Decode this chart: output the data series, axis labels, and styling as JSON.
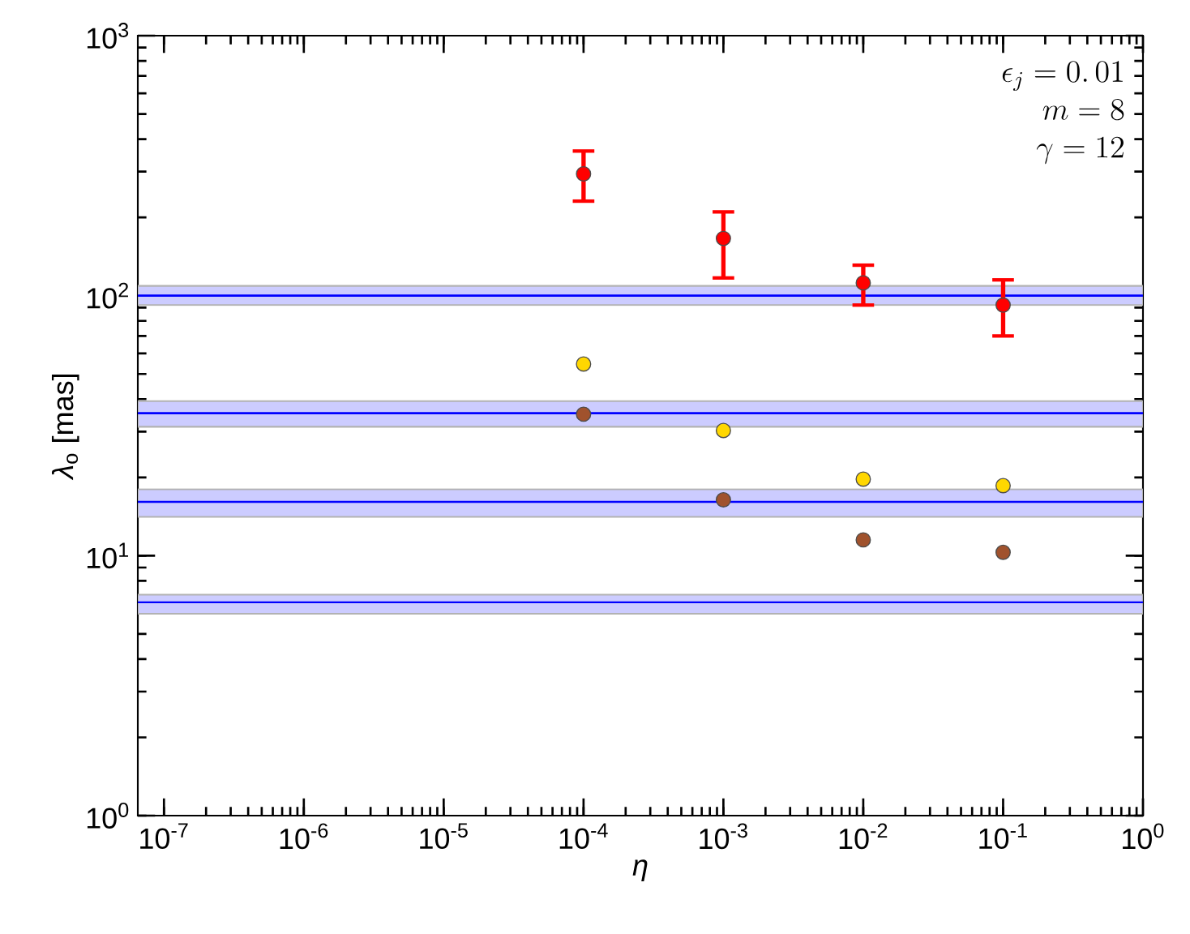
{
  "chart_data": {
    "type": "scatter",
    "xlabel": "η",
    "ylabel": "*λ*$_{o}$ [mas]",
    "annotations": [
      "\\epsilon_j = 0.\\,01",
      "m = 8",
      "\\gamma = 12"
    ],
    "x": [
      0.0001,
      0.001,
      0.01,
      0.1
    ],
    "series": [
      {
        "color": "#ff0000",
        "values": [
          294,
          166,
          112,
          92
        ],
        "errors": [
          [
            231,
            360
          ],
          [
            117,
            210
          ],
          [
            92,
            131
          ],
          [
            70,
            115
          ]
        ]
      },
      {
        "color": "#ffd700",
        "values": [
          54.6,
          30.3,
          19.7,
          18.6
        ]
      },
      {
        "color": "#a0522d",
        "values": [
          35.0,
          16.4,
          11.5,
          10.3
        ]
      }
    ],
    "marker": "circle",
    "log": "xy",
    "xlim": [
      6.5e-08,
      1
    ],
    "ylim": [
      1,
      1000
    ],
    "xticks": [
      {
        "value": 1e-07,
        "label": "10$^{-7}$"
      },
      {
        "value": 1e-06,
        "label": "10$^{-6}$"
      },
      {
        "value": 1e-05,
        "label": "10$^{-5}$"
      },
      {
        "value": 0.0001,
        "label": "10$^{-4}$"
      },
      {
        "value": 0.001,
        "label": "10$^{-3}$"
      },
      {
        "value": 0.01,
        "label": "10$^{-2}$"
      },
      {
        "value": 0.1,
        "label": "10$^{-1}$"
      },
      {
        "value": 1,
        "label": "10$^{0}$"
      }
    ],
    "yticks": [
      {
        "value": 1,
        "label": "10$^{0}$"
      },
      {
        "value": 10,
        "label": "10$^{1}$"
      },
      {
        "value": 100,
        "label": "10$^{2}$"
      },
      {
        "value": 1000,
        "label": "10$^{3}$"
      }
    ],
    "ref_lines": [
      {
        "axis": "y",
        "value": 100,
        "color": "#0000ff"
      },
      {
        "axis": "y",
        "value": 35.3,
        "color": "#0000ff"
      },
      {
        "axis": "y",
        "value": 16.1,
        "color": "#0000ff"
      },
      {
        "axis": "y",
        "value": 6.62,
        "color": "#0000ff"
      }
    ],
    "bands": [
      {
        "axis": "y",
        "from": 92,
        "to": 109,
        "color": "#ccccff"
      },
      {
        "axis": "y",
        "from": 31.3,
        "to": 39.3,
        "color": "#ccccff"
      },
      {
        "axis": "y",
        "from": 14.1,
        "to": 18.0,
        "color": "#ccccff"
      },
      {
        "axis": "y",
        "from": 5.98,
        "to": 7.08,
        "color": "#ccccff"
      }
    ]
  }
}
